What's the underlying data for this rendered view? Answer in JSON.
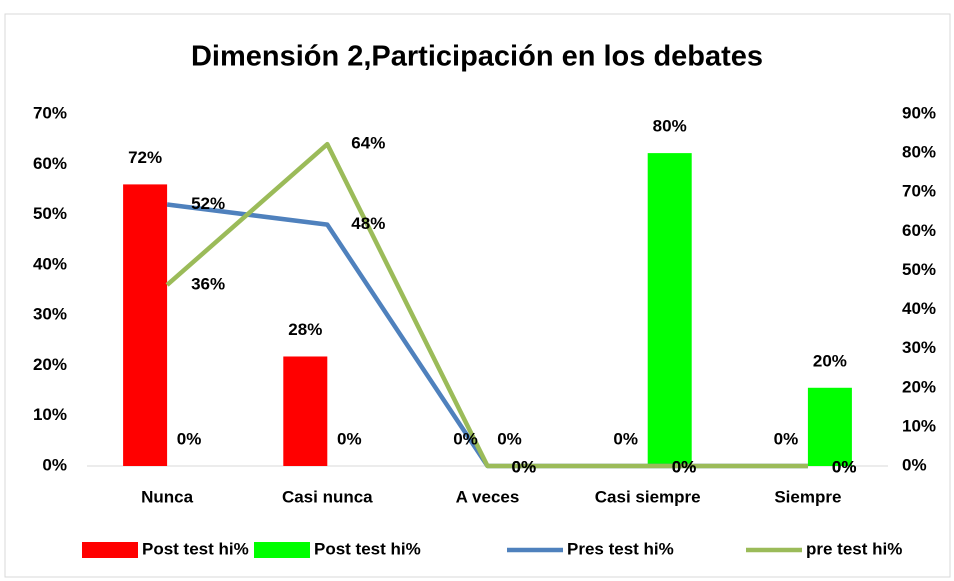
{
  "chart_data": {
    "type": "bar_line",
    "title": "Dimensión 2,Participación en los debates",
    "categories": [
      "Nunca",
      "Casi nunca",
      "A veces",
      "Casi siempre",
      "Siempre"
    ],
    "series": [
      {
        "name": "Post test hi%",
        "type": "bar",
        "axis": "y2",
        "color": "#ff0000",
        "values": [
          72,
          28,
          0,
          0,
          0
        ],
        "value_labels": [
          "72%",
          "28%",
          "0%",
          "0%",
          "0%"
        ]
      },
      {
        "name": "Post test hi%",
        "type": "bar",
        "axis": "y2",
        "color": "#00ff00",
        "values": [
          0,
          0,
          0,
          80,
          20
        ],
        "value_labels": [
          "0%",
          "0%",
          "0%",
          "80%",
          "20%"
        ]
      },
      {
        "name": "Pres test  hi%",
        "type": "line",
        "axis": "y",
        "color": "#4f81bd",
        "values": [
          52,
          48,
          0,
          0,
          0
        ],
        "value_labels": [
          "52%",
          "48%",
          "0%",
          "0%",
          "0%"
        ]
      },
      {
        "name": "pre test hi%",
        "type": "line",
        "axis": "y",
        "color": "#9bbb59",
        "values": [
          36,
          64,
          0,
          0,
          0
        ],
        "value_labels": [
          "36%",
          "64%",
          "0%",
          "0%",
          "0%"
        ]
      }
    ],
    "ylim": [
      0,
      70
    ],
    "yticks": [
      {
        "value": 0,
        "label": "0%"
      },
      {
        "value": 10,
        "label": "10%"
      },
      {
        "value": 20,
        "label": "20%"
      },
      {
        "value": 30,
        "label": "30%"
      },
      {
        "value": 40,
        "label": "40%"
      },
      {
        "value": 50,
        "label": "50%"
      },
      {
        "value": 60,
        "label": "60%"
      },
      {
        "value": 70,
        "label": "70%"
      }
    ],
    "y2lim": [
      0,
      90
    ],
    "y2ticks": [
      {
        "value": 0,
        "label": "0%"
      },
      {
        "value": 10,
        "label": "10%"
      },
      {
        "value": 20,
        "label": "20%"
      },
      {
        "value": 30,
        "label": "30%"
      },
      {
        "value": 40,
        "label": "40%"
      },
      {
        "value": 50,
        "label": "50%"
      },
      {
        "value": 60,
        "label": "60%"
      },
      {
        "value": 70,
        "label": "70%"
      },
      {
        "value": 80,
        "label": "80%"
      },
      {
        "value": 90,
        "label": "90%"
      }
    ],
    "legend": "bottom"
  }
}
